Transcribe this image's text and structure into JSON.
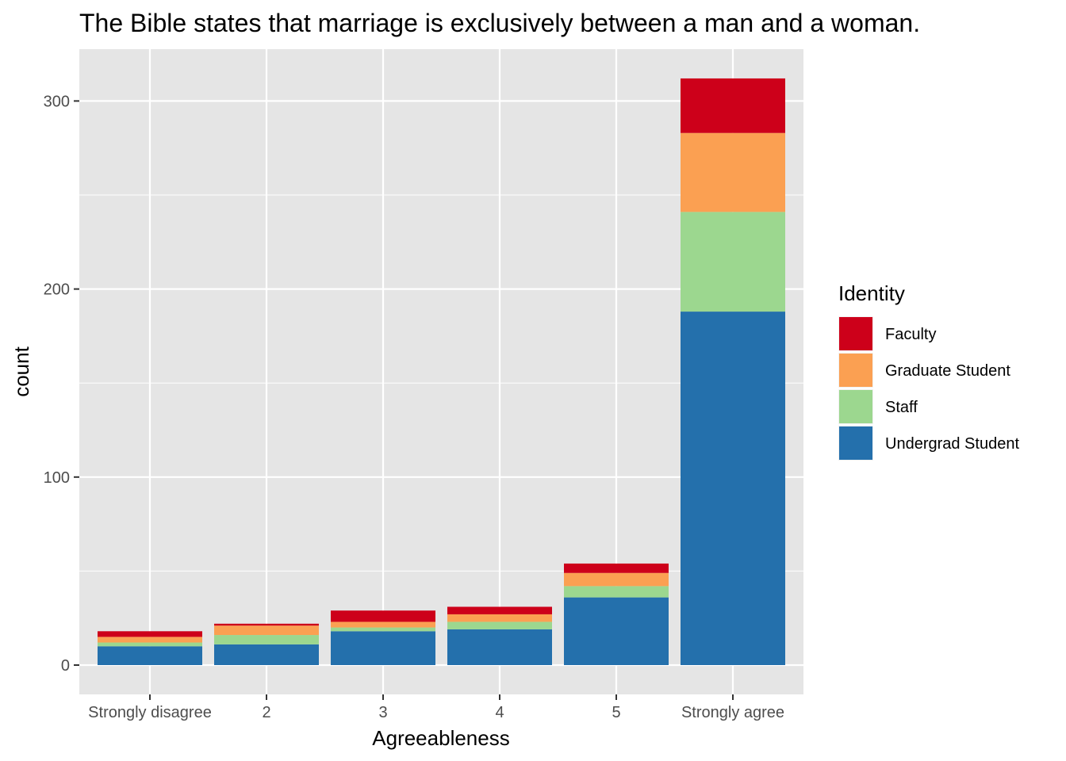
{
  "chart_data": {
    "type": "bar",
    "stacked": true,
    "title": "The Bible states that marriage is exclusively between a man and a woman.",
    "xlabel": "Agreeableness",
    "ylabel": "count",
    "categories": [
      "Strongly disagree",
      "2",
      "3",
      "4",
      "5",
      "Strongly agree"
    ],
    "yticks": [
      0,
      100,
      200,
      300
    ],
    "ylim": [
      -15,
      328
    ],
    "grid": true,
    "legend": {
      "title": "Identity",
      "placement": "right"
    },
    "series": [
      {
        "name": "Undergrad Student",
        "color": "#2470AC",
        "values": [
          10,
          11,
          18,
          19,
          36,
          188
        ]
      },
      {
        "name": "Staff",
        "color": "#9CD78F",
        "values": [
          2,
          5,
          2,
          4,
          6,
          53
        ]
      },
      {
        "name": "Graduate Student",
        "color": "#FBA052",
        "values": [
          3,
          5,
          3,
          4,
          7,
          42
        ]
      },
      {
        "name": "Faculty",
        "color": "#CD001A",
        "values": [
          3,
          1,
          6,
          4,
          5,
          29
        ]
      }
    ],
    "legend_order": [
      "Faculty",
      "Graduate Student",
      "Staff",
      "Undergrad Student"
    ],
    "panel_background": "#E5E5E5",
    "grid_color": "#FFFFFF"
  }
}
